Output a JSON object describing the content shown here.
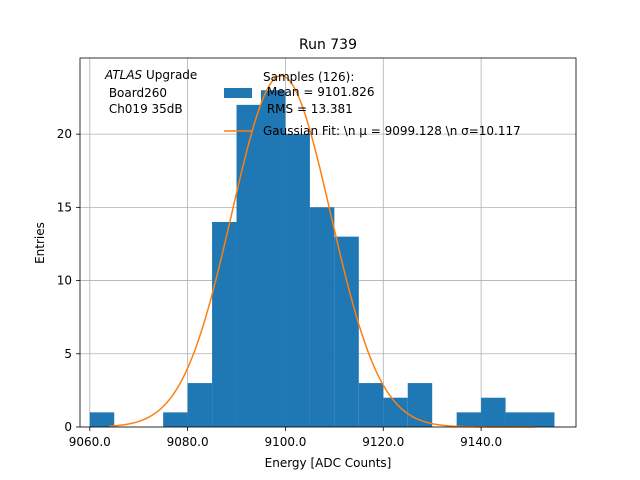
{
  "chart_data": {
    "type": "bar",
    "title": "Run 739",
    "xlabel": "Energy [ADC Counts]",
    "ylabel": "Entries",
    "xlim": [
      9058.0,
      9159.4
    ],
    "ylim": [
      0,
      25.2
    ],
    "grid": true,
    "xticks": [
      9060.0,
      9080.0,
      9100.0,
      9120.0,
      9140.0
    ],
    "xtick_labels": [
      "9060.0",
      "9080.0",
      "9100.0",
      "9120.0",
      "9140.0"
    ],
    "yticks": [
      0,
      5,
      10,
      15,
      20
    ],
    "ytick_labels": [
      "0",
      "5",
      "10",
      "15",
      "20"
    ],
    "histogram": {
      "bin_edges": [
        9060.0,
        9065.0,
        9070.0,
        9075.0,
        9080.0,
        9085.0,
        9090.0,
        9095.0,
        9100.0,
        9105.0,
        9110.0,
        9115.0,
        9120.0,
        9125.0,
        9130.0,
        9135.0,
        9140.0,
        9145.0,
        9150.0,
        9155.0
      ],
      "counts": [
        1,
        0,
        0,
        1,
        3,
        14,
        22,
        23,
        20,
        15,
        13,
        3,
        2,
        3,
        0,
        1,
        2,
        1,
        1
      ],
      "color": "#1f77b4"
    },
    "fit": {
      "type": "gaussian",
      "mu": 9099.128,
      "sigma": 10.117,
      "amplitude": 24.0,
      "x_range": [
        9064.0,
        9151.0
      ],
      "color": "#ff7f0e"
    },
    "legend": {
      "placement": "top",
      "entries": [
        {
          "label_lines": [
            "Samples (126):",
            " Mean = 9101.826",
            " RMS = 13.381"
          ],
          "type": "patch",
          "color": "#1f77b4"
        },
        {
          "label_lines": [
            "Gaussian Fit: \\n μ = 9099.128 \\n σ=10.117"
          ],
          "type": "line",
          "color": "#ff7f0e"
        }
      ]
    },
    "annotation": {
      "italic": "ATLAS",
      "rest": " Upgrade",
      "line2": " Board260",
      "line3": " Ch019 35dB"
    }
  }
}
